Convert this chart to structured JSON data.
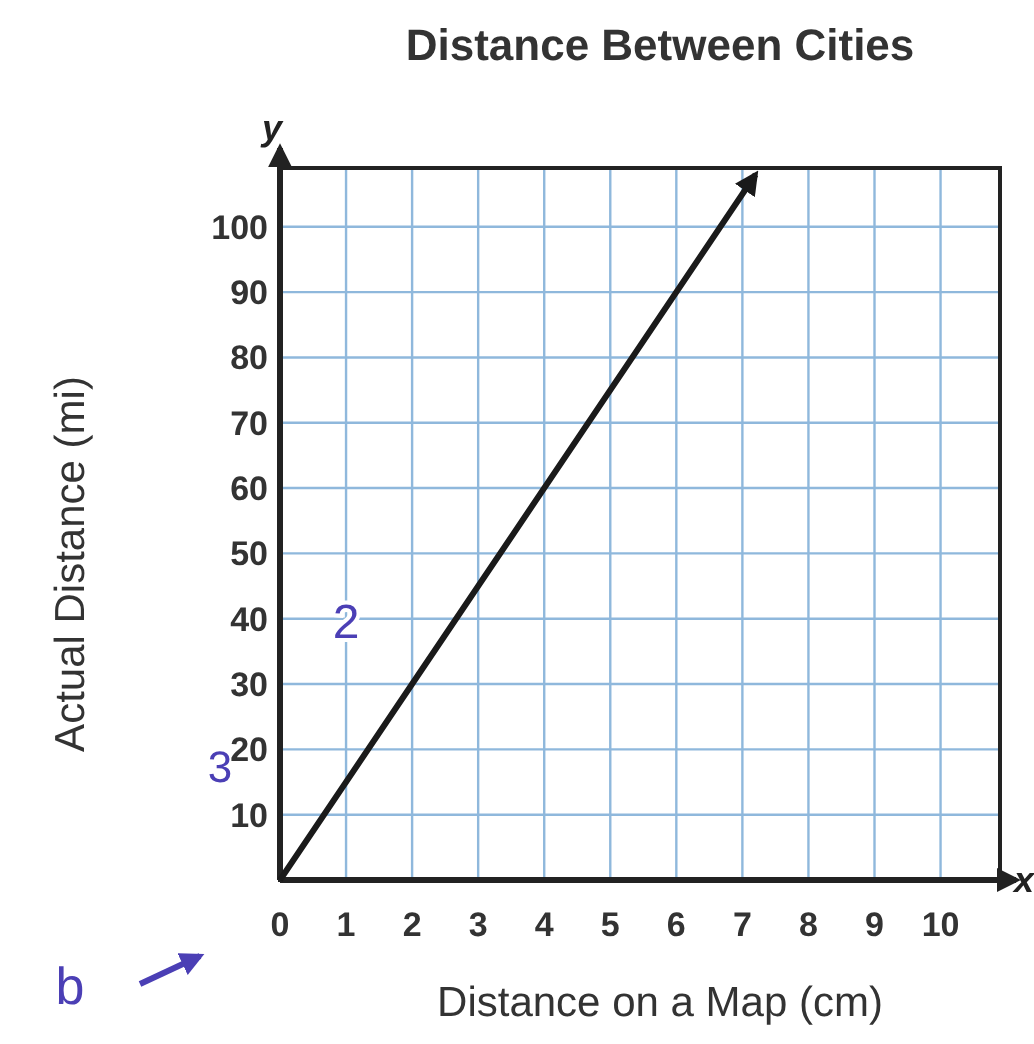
{
  "chart_data": {
    "type": "line",
    "title": "Distance Between Cities",
    "xlabel": "Distance on a Map (cm)",
    "ylabel": "Actual Distance (mi)",
    "series": [
      {
        "color": "#1a1a1a",
        "x": [
          0,
          2,
          7.2
        ],
        "values": [
          0,
          30,
          108
        ]
      }
    ],
    "xlim": [
      0,
      10.9
    ],
    "ylim": [
      0,
      109
    ],
    "xticks": [
      0,
      1,
      2,
      3,
      4,
      5,
      6,
      7,
      8,
      9,
      10
    ],
    "yticks": [
      {
        "value": 0,
        "label": null
      },
      10,
      20,
      30,
      40,
      50,
      60,
      70,
      80,
      90,
      100
    ],
    "grid": true,
    "marker": "none",
    "line_style": "solid",
    "annotations": [
      "y",
      "x",
      "3",
      "b",
      "2"
    ]
  }
}
